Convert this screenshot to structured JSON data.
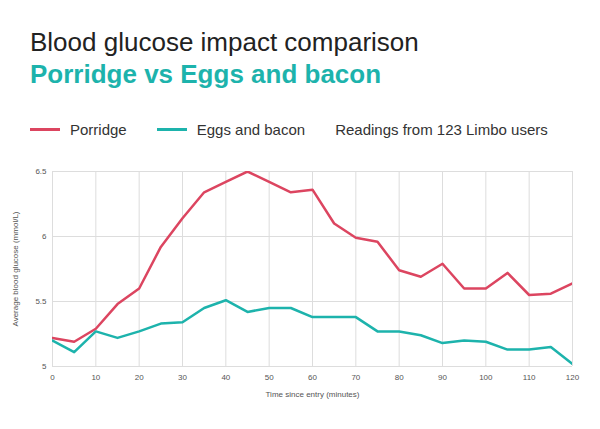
{
  "chart_data": {
    "type": "line",
    "title": "Blood glucose impact comparison",
    "subtitle": "Porridge vs Eggs and bacon",
    "caption": "Readings from 123 Limbo users",
    "x_label": "Time since entry (minutes)",
    "y_label": "Average blood glucose (mmol/L)",
    "x": [
      0,
      5,
      10,
      15,
      20,
      25,
      30,
      35,
      40,
      45,
      50,
      55,
      60,
      65,
      70,
      75,
      80,
      85,
      90,
      95,
      100,
      105,
      110,
      115,
      120
    ],
    "series": [
      {
        "name": "Porridge",
        "color": "#dc4560",
        "values": [
          5.22,
          5.19,
          5.29,
          5.48,
          5.6,
          5.92,
          6.14,
          6.34,
          6.42,
          6.5,
          6.42,
          6.34,
          6.36,
          6.1,
          5.99,
          5.96,
          5.74,
          5.69,
          5.79,
          5.6,
          5.6,
          5.72,
          5.55,
          5.56,
          5.64
        ]
      },
      {
        "name": "Eggs and bacon",
        "color": "#1db3ac",
        "values": [
          5.2,
          5.11,
          5.27,
          5.22,
          5.27,
          5.33,
          5.34,
          5.45,
          5.51,
          5.42,
          5.45,
          5.45,
          5.38,
          5.38,
          5.38,
          5.27,
          5.27,
          5.24,
          5.18,
          5.2,
          5.19,
          5.13,
          5.13,
          5.15,
          5.02
        ]
      }
    ],
    "xlim": [
      0,
      120
    ],
    "ylim": [
      5,
      6.5
    ],
    "xticks": [
      0,
      10,
      20,
      30,
      40,
      50,
      60,
      70,
      80,
      90,
      100,
      110,
      120
    ],
    "yticks": [
      5,
      5.5,
      6,
      6.5
    ],
    "grid": true,
    "legend": "top-left"
  }
}
